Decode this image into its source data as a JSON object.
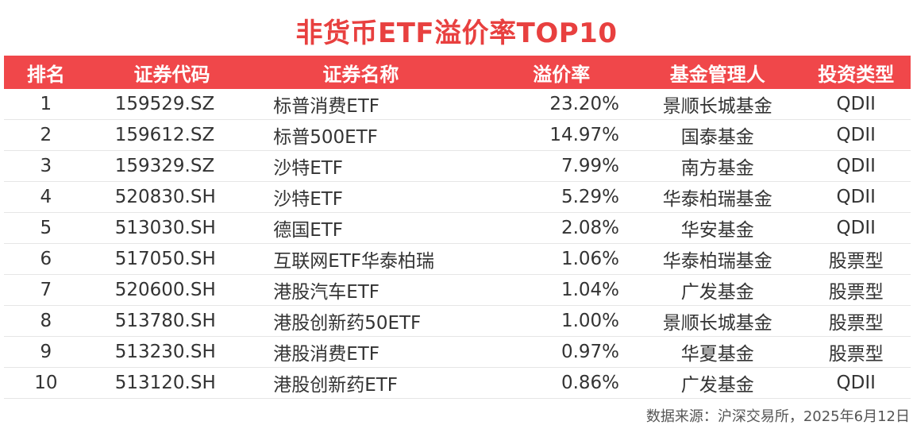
{
  "title": "非货币ETF溢价率TOP10",
  "table": {
    "headers": [
      "排名",
      "证券代码",
      "证券名称",
      "溢价率",
      "基金管理人",
      "投资类型"
    ],
    "rows": [
      {
        "rank": "1",
        "code": "159529.SZ",
        "name": "标普消费ETF",
        "premium": "23.20%",
        "manager": "景顺长城基金",
        "type": "QDII"
      },
      {
        "rank": "2",
        "code": "159612.SZ",
        "name": "标普500ETF",
        "premium": "14.97%",
        "manager": "国泰基金",
        "type": "QDII"
      },
      {
        "rank": "3",
        "code": "159329.SZ",
        "name": "沙特ETF",
        "premium": "7.99%",
        "manager": "南方基金",
        "type": "QDII"
      },
      {
        "rank": "4",
        "code": "520830.SH",
        "name": "沙特ETF",
        "premium": "5.29%",
        "manager": "华泰柏瑞基金",
        "type": "QDII"
      },
      {
        "rank": "5",
        "code": "513030.SH",
        "name": "德国ETF",
        "premium": "2.08%",
        "manager": "华安基金",
        "type": "QDII"
      },
      {
        "rank": "6",
        "code": "517050.SH",
        "name": "互联网ETF华泰柏瑞",
        "premium": "1.06%",
        "manager": "华泰柏瑞基金",
        "type": "股票型"
      },
      {
        "rank": "7",
        "code": "520600.SH",
        "name": "港股汽车ETF",
        "premium": "1.04%",
        "manager": "广发基金",
        "type": "股票型"
      },
      {
        "rank": "8",
        "code": "513780.SH",
        "name": "港股创新药50ETF",
        "premium": "1.00%",
        "manager": "景顺长城基金",
        "type": "股票型"
      },
      {
        "rank": "9",
        "code": "513230.SH",
        "name": "港股消费ETF",
        "premium": "0.97%",
        "manager": "华夏基金",
        "type": "股票型"
      },
      {
        "rank": "10",
        "code": "513120.SH",
        "name": "港股创新药ETF",
        "premium": "0.86%",
        "manager": "广发基金",
        "type": "QDII"
      }
    ]
  },
  "source": "数据来源：沪深交易所，2025年6月12日",
  "colors": {
    "title": "#e8403f",
    "header_bg": "#f0474a",
    "header_text": "#ffffff"
  }
}
